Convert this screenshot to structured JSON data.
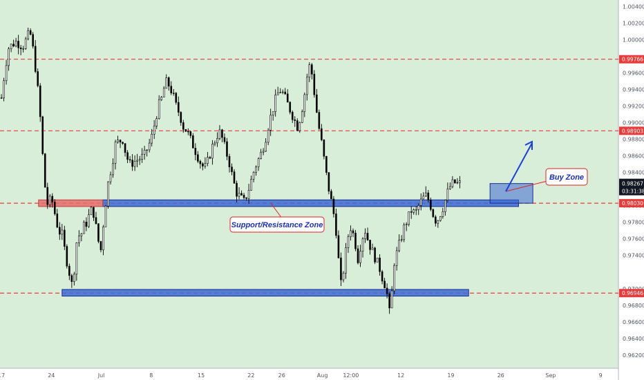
{
  "chart_data": {
    "type": "candlestick",
    "colors": {
      "background": "#d8eed8",
      "axis_bg": "#ffffff",
      "candle": "#000000",
      "level_line": "#e83a3a",
      "zone_fill": "#3d6ad6",
      "zone_stroke": "#1a2c8e",
      "red_zone": "#e86b6b",
      "tag_red": "#e83a3a",
      "tag_dark": "#131722",
      "callout_stroke": "#e02020",
      "callout_text": "#1a2fbf",
      "arrow": "#1a3fe0"
    },
    "y_axis": {
      "range": [
        0.9604,
        1.0048
      ],
      "ticks": [
        "1.00400",
        "1.00200",
        "1.00000",
        "0.99600",
        "0.99400",
        "0.99200",
        "0.99000",
        "0.98800",
        "0.98600",
        "0.98400",
        "0.98000",
        "0.97800",
        "0.97600",
        "0.97400",
        "0.97000",
        "0.96800",
        "0.96600",
        "0.96400",
        "0.96200"
      ]
    },
    "x_axis": {
      "ticks": [
        {
          "label": "17",
          "t": 0
        },
        {
          "label": "24",
          "t": 7
        },
        {
          "label": "Jul",
          "t": 14
        },
        {
          "label": "8",
          "t": 21
        },
        {
          "label": "15",
          "t": 28
        },
        {
          "label": "22",
          "t": 35
        },
        {
          "label": "26",
          "t": 39.3
        },
        {
          "label": "Aug",
          "t": 45
        },
        {
          "label": "12:00",
          "t": 49
        },
        {
          "label": "12",
          "t": 56
        },
        {
          "label": "19",
          "t": 63
        },
        {
          "label": "26",
          "t": 70
        },
        {
          "label": "Sep",
          "t": 77
        },
        {
          "label": "9",
          "t": 84
        }
      ],
      "range": [
        -0.2,
        86.5
      ]
    },
    "levels": [
      {
        "value": 0.99766,
        "label": "0.99766"
      },
      {
        "value": 0.98903,
        "label": "0.98903"
      },
      {
        "value": 0.9803,
        "label": "0.98030"
      },
      {
        "value": 0.96946,
        "label": "0.96946"
      }
    ],
    "current_price": {
      "value": 0.98267,
      "label": "0.98267",
      "countdown": "03:31:38"
    },
    "zones": [
      {
        "name": "support-resistance",
        "t_start": 14.2,
        "t_end": 72.5,
        "low": 0.9799,
        "high": 0.9807
      },
      {
        "name": "support-resistance-past",
        "t_start": 5.2,
        "t_end": 14.2,
        "low": 0.9799,
        "high": 0.9807,
        "style": "red"
      },
      {
        "name": "bottom-support",
        "t_start": 8.5,
        "t_end": 65.5,
        "low": 0.9691,
        "high": 0.9699
      },
      {
        "name": "buy-zone",
        "t_start": 68.5,
        "t_end": 74.5,
        "low": 0.9803,
        "high": 0.98267
      }
    ],
    "annotations": [
      {
        "name": "support-resistance-callout",
        "text": "Support/Resistance Zone"
      },
      {
        "name": "buy-zone-callout",
        "text": "Buy Zone"
      }
    ],
    "ohlc_path": [
      [
        0,
        0.993
      ],
      [
        0.5,
        0.9965
      ],
      [
        1,
        0.999
      ],
      [
        2,
        0.9998
      ],
      [
        3,
        0.9992
      ],
      [
        4,
        1.001
      ],
      [
        4.5,
        0.9985
      ],
      [
        5,
        0.995
      ],
      [
        5.5,
        0.99
      ],
      [
        6,
        0.983
      ],
      [
        6.5,
        0.98
      ],
      [
        7,
        0.981
      ],
      [
        7.5,
        0.979
      ],
      [
        8,
        0.977
      ],
      [
        8.5,
        0.9765
      ],
      [
        9,
        0.974
      ],
      [
        9.5,
        0.972
      ],
      [
        10,
        0.97
      ],
      [
        10.3,
        0.9735
      ],
      [
        10.7,
        0.977
      ],
      [
        11,
        0.976
      ],
      [
        11.5,
        0.9775
      ],
      [
        12,
        0.978
      ],
      [
        12.5,
        0.9795
      ],
      [
        13,
        0.979
      ],
      [
        13.5,
        0.976
      ],
      [
        14,
        0.9745
      ],
      [
        14.3,
        0.978
      ],
      [
        14.7,
        0.981
      ],
      [
        15,
        0.983
      ],
      [
        15.5,
        0.985
      ],
      [
        16,
        0.9875
      ],
      [
        17,
        0.988
      ],
      [
        17.5,
        0.986
      ],
      [
        18,
        0.985
      ],
      [
        19,
        0.9855
      ],
      [
        20,
        0.986
      ],
      [
        21,
        0.988
      ],
      [
        21.5,
        0.99
      ],
      [
        22,
        0.992
      ],
      [
        22.5,
        0.993
      ],
      [
        23,
        0.995
      ],
      [
        23.5,
        0.9945
      ],
      [
        24,
        0.9935
      ],
      [
        24.5,
        0.992
      ],
      [
        25,
        0.991
      ],
      [
        25.5,
        0.9895
      ],
      [
        26,
        0.989
      ],
      [
        26.5,
        0.988
      ],
      [
        27,
        0.987
      ],
      [
        27.5,
        0.986
      ],
      [
        28,
        0.985
      ],
      [
        28.5,
        0.9845
      ],
      [
        29,
        0.9855
      ],
      [
        29.5,
        0.987
      ],
      [
        30,
        0.988
      ],
      [
        30.5,
        0.989
      ],
      [
        31,
        0.988
      ],
      [
        31.5,
        0.9865
      ],
      [
        32,
        0.985
      ],
      [
        32.5,
        0.983
      ],
      [
        33,
        0.9815
      ],
      [
        33.5,
        0.981
      ],
      [
        34,
        0.9805
      ],
      [
        34.5,
        0.9815
      ],
      [
        35,
        0.983
      ],
      [
        35.5,
        0.9845
      ],
      [
        36,
        0.9855
      ],
      [
        36.5,
        0.9865
      ],
      [
        37,
        0.988
      ],
      [
        37.5,
        0.99
      ],
      [
        38,
        0.9915
      ],
      [
        38.5,
        0.993
      ],
      [
        39,
        0.994
      ],
      [
        39.5,
        0.9935
      ],
      [
        40,
        0.9925
      ],
      [
        40.5,
        0.9915
      ],
      [
        41,
        0.9905
      ],
      [
        41.5,
        0.9895
      ],
      [
        42,
        0.991
      ],
      [
        42.5,
        0.9935
      ],
      [
        43,
        0.9965
      ],
      [
        43.3,
        0.997
      ],
      [
        43.7,
        0.995
      ],
      [
        44,
        0.9925
      ],
      [
        44.5,
        0.9895
      ],
      [
        45,
        0.987
      ],
      [
        45.5,
        0.984
      ],
      [
        46,
        0.9815
      ],
      [
        46.5,
        0.9795
      ],
      [
        47,
        0.9765
      ],
      [
        47.3,
        0.973
      ],
      [
        47.6,
        0.9705
      ],
      [
        48,
        0.9725
      ],
      [
        48.5,
        0.976
      ],
      [
        49,
        0.9775
      ],
      [
        49.5,
        0.976
      ],
      [
        50,
        0.9735
      ],
      [
        50.5,
        0.976
      ],
      [
        51,
        0.977
      ],
      [
        51.5,
        0.9755
      ],
      [
        52,
        0.9745
      ],
      [
        52.5,
        0.9735
      ],
      [
        53,
        0.9725
      ],
      [
        53.5,
        0.971
      ],
      [
        54,
        0.97
      ],
      [
        54.3,
        0.9665
      ],
      [
        54.7,
        0.969
      ],
      [
        55,
        0.973
      ],
      [
        55.5,
        0.9745
      ],
      [
        56,
        0.976
      ],
      [
        56.5,
        0.9775
      ],
      [
        57,
        0.9785
      ],
      [
        57.5,
        0.9795
      ],
      [
        58,
        0.979
      ],
      [
        58.5,
        0.98
      ],
      [
        59,
        0.9808
      ],
      [
        59.5,
        0.9812
      ],
      [
        60,
        0.9805
      ],
      [
        60.5,
        0.979
      ],
      [
        61,
        0.978
      ],
      [
        61.5,
        0.979
      ],
      [
        62,
        0.98
      ],
      [
        62.5,
        0.9815
      ],
      [
        63,
        0.9825
      ],
      [
        63.5,
        0.9828
      ],
      [
        64,
        0.9826
      ],
      [
        64.5,
        0.9827
      ]
    ]
  }
}
